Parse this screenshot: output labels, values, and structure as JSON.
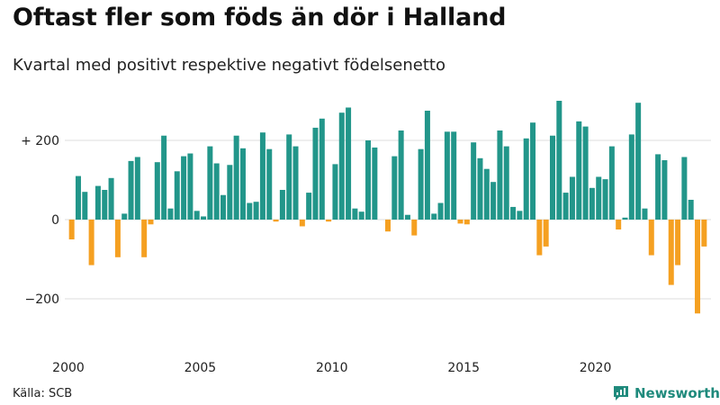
{
  "title": "Oftast fler som föds än dör i Halland",
  "subtitle": "Kvartal med positivt respektive negativt födelsenetto",
  "source": "Källa: SCB",
  "brand": "Newsworthy",
  "colors": {
    "positive": "#22968a",
    "negative": "#f5a021",
    "grid": "#dddddd",
    "brand": "#1f8a7c"
  },
  "chart_data": {
    "type": "bar",
    "title": "Oftast fler som föds än dör i Halland",
    "subtitle": "Kvartal med positivt respektive negativt födelsenetto",
    "ylim": [
      -300,
      300
    ],
    "yticks": [
      200,
      0,
      -200
    ],
    "ytick_labels": [
      "+ 200",
      "0",
      "−200"
    ],
    "xtick_labels": [
      {
        "label": "2000",
        "year": 2000
      },
      {
        "label": "2005",
        "year": 2005
      },
      {
        "label": "2010",
        "year": 2010
      },
      {
        "label": "2015",
        "year": 2015
      },
      {
        "label": "2020",
        "year": 2020
      }
    ],
    "grid": true,
    "start_year": 2000,
    "periods_per_year": 4,
    "values": [
      -50,
      110,
      70,
      -115,
      85,
      75,
      105,
      -95,
      15,
      148,
      158,
      -95,
      -12,
      145,
      212,
      28,
      122,
      160,
      167,
      22,
      8,
      185,
      142,
      62,
      138,
      212,
      180,
      42,
      45,
      220,
      178,
      -5,
      75,
      215,
      185,
      -17,
      68,
      232,
      255,
      -5,
      140,
      270,
      283,
      28,
      20,
      200,
      182,
      0,
      -30,
      160,
      225,
      12,
      -40,
      178,
      275,
      15,
      42,
      222,
      222,
      -10,
      -12,
      195,
      155,
      128,
      95,
      225,
      185,
      32,
      22,
      205,
      245,
      -90,
      -68,
      212,
      300,
      68,
      108,
      248,
      235,
      80,
      108,
      102,
      185,
      -25,
      5,
      215,
      295,
      28,
      -90,
      165,
      150,
      -165,
      -115,
      158,
      50,
      -237,
      -68
    ]
  }
}
